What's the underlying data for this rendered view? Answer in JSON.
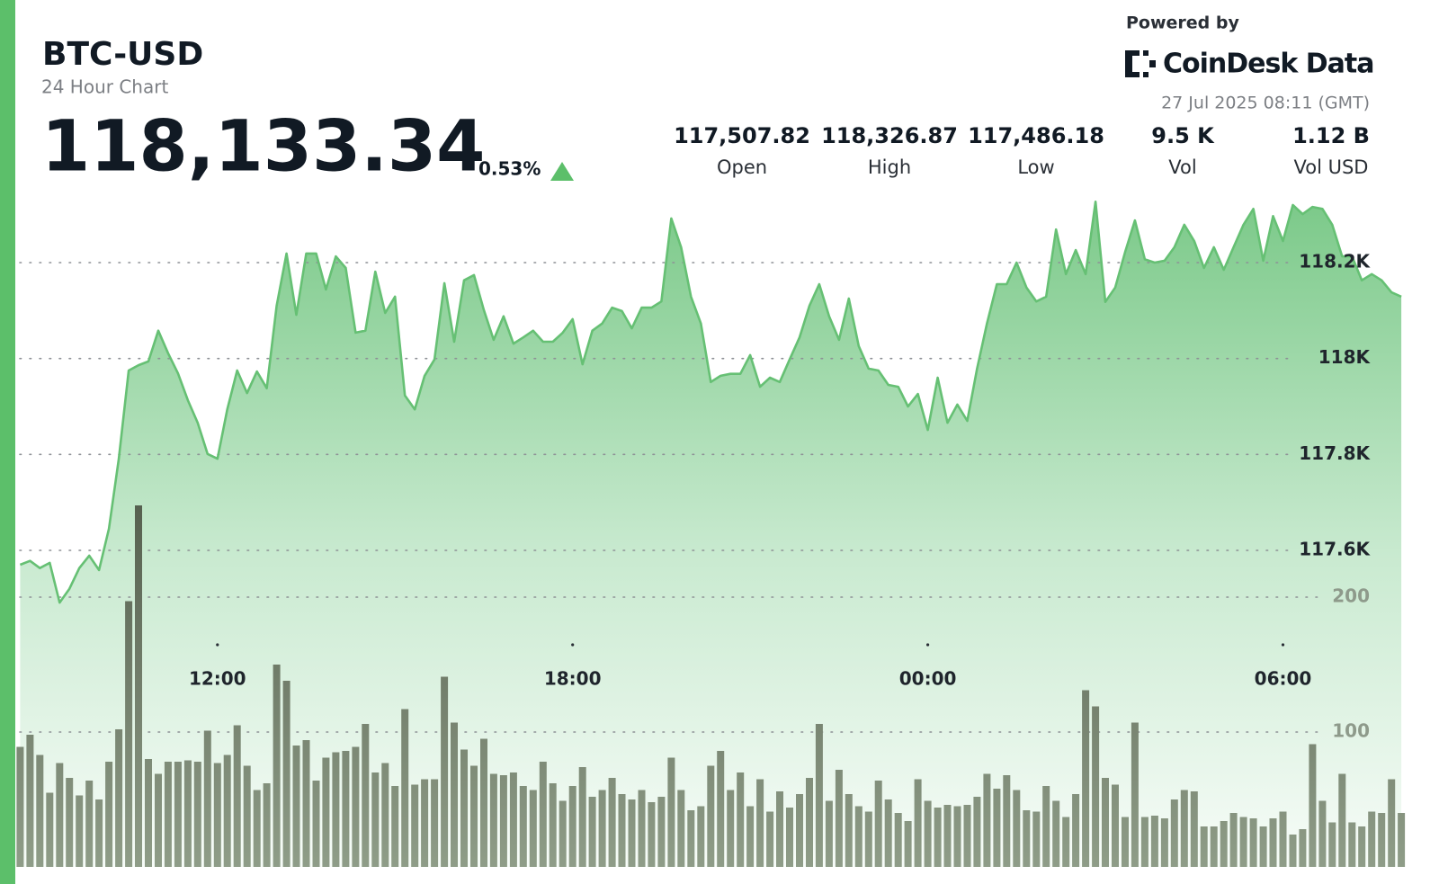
{
  "header": {
    "title": "BTC-USD",
    "subtitle": "24 Hour Chart",
    "price": "118,133.34",
    "change": "0.53%",
    "powered_by": "Powered by",
    "brand": "CoinDesk Data",
    "timestamp": "27 Jul 2025 08:11 (GMT)",
    "stats": [
      {
        "value": "117,507.82",
        "label": "Open"
      },
      {
        "value": "118,326.87",
        "label": "High"
      },
      {
        "value": "117,486.18",
        "label": "Low"
      },
      {
        "value": "9.5 K",
        "label": "Vol"
      },
      {
        "value": "1.12 B",
        "label": "Vol USD"
      }
    ]
  },
  "chart_data": {
    "type": "area",
    "x": [
      520,
      530,
      540,
      550,
      560,
      570,
      580,
      590,
      600,
      610,
      620,
      630,
      640,
      650,
      660,
      670,
      680,
      690,
      700,
      710,
      720,
      730,
      740,
      750,
      760,
      770,
      780,
      790,
      800,
      810,
      820,
      830,
      840,
      850,
      860,
      870,
      880,
      890,
      900,
      910,
      920,
      930,
      940,
      950,
      960,
      970,
      980,
      990,
      1000,
      1010,
      1020,
      1030,
      1040,
      1050,
      1060,
      1070,
      1080,
      1090,
      1100,
      1110,
      1120,
      1130,
      1140,
      1150,
      1160,
      1170,
      1180,
      1190,
      1200,
      1210,
      1220,
      1230,
      1240,
      1250,
      1260,
      1270,
      1280,
      1290,
      1300,
      1310,
      1320,
      1330,
      1340,
      1350,
      1360,
      1370,
      1380,
      1390,
      1400,
      1410,
      1420,
      1430,
      1440,
      1450,
      1460,
      1470,
      1480,
      1490,
      1500,
      1510,
      1520,
      1530,
      1540,
      1550,
      1560,
      1570,
      1580,
      1590,
      1600,
      1610,
      1620,
      1630,
      1640,
      1650,
      1660,
      1670,
      1680,
      1690,
      1700,
      1710,
      1720,
      1730,
      1740,
      1750,
      1760,
      1770,
      1780,
      1790,
      1800,
      1810,
      1820,
      1830,
      1840,
      1850,
      1860,
      1870,
      1880,
      1890,
      1900,
      1910,
      1920
    ],
    "xlim": [
      516,
      1929
    ],
    "xticks": [
      {
        "value": 720,
        "label": "12:00"
      },
      {
        "value": 1080,
        "label": "18:00"
      },
      {
        "value": 1440,
        "label": "00:00"
      },
      {
        "value": 1800,
        "label": "06:00"
      }
    ],
    "ylim": [
      116940,
      118380
    ],
    "yticks": [
      {
        "value": 117600,
        "label": "117.6K"
      },
      {
        "value": 117800,
        "label": "117.8K"
      },
      {
        "value": 118000,
        "label": "118K"
      },
      {
        "value": 118200,
        "label": "118.2K"
      }
    ],
    "y2lim": [
      0,
      512
    ],
    "y2ticks": [
      100,
      200
    ],
    "grid": true,
    "series": [
      {
        "color": "#66c074",
        "values": [
          117570,
          117578,
          117563,
          117574,
          117491,
          117520,
          117563,
          117589,
          117559,
          117645,
          117791,
          117975,
          117986,
          117994,
          118058,
          118011,
          117969,
          117913,
          117866,
          117801,
          117791,
          117894,
          117975,
          117928,
          117973,
          117938,
          118110,
          118219,
          118091,
          118219,
          118219,
          118144,
          118213,
          118189,
          118054,
          118058,
          118181,
          118095,
          118129,
          117923,
          117894,
          117964,
          117998,
          118157,
          118035,
          118163,
          118174,
          118101,
          118039,
          118088,
          118031,
          118044,
          118058,
          118035,
          118035,
          118054,
          118082,
          117988,
          118058,
          118073,
          118106,
          118099,
          118063,
          118106,
          118106,
          118119,
          118292,
          118232,
          118129,
          118073,
          117951,
          117964,
          117968,
          117968,
          118007,
          117941,
          117960,
          117951,
          117998,
          118044,
          118110,
          118155,
          118088,
          118039,
          118125,
          118026,
          117979,
          117975,
          117945,
          117941,
          117900,
          117926,
          117851,
          117960,
          117866,
          117904,
          117870,
          117979,
          118073,
          118155,
          118155,
          118200,
          118148,
          118119,
          118129,
          118269,
          118176,
          118226,
          118176,
          118327,
          118118,
          118148,
          118222,
          118288,
          118207,
          118200,
          118204,
          118232,
          118279,
          118245,
          118189,
          118232,
          118185,
          118232,
          118279,
          118312,
          118204,
          118297,
          118245,
          118320,
          118301,
          118316,
          118312,
          118279,
          118213,
          118213,
          118163,
          118176,
          118163,
          118138,
          118129
        ]
      },
      {
        "type": "bar",
        "axis": "y2",
        "color": "#67735f",
        "values": [
          89,
          98,
          83,
          55,
          77,
          66,
          53,
          64,
          50,
          78,
          102,
          197,
          268,
          80,
          69,
          78,
          78,
          79,
          78,
          101,
          77,
          83,
          105,
          75,
          57,
          62,
          150,
          138,
          90,
          94,
          64,
          81,
          85,
          86,
          89,
          106,
          70,
          77,
          60,
          117,
          61,
          65,
          65,
          141,
          107,
          87,
          75,
          95,
          69,
          68,
          70,
          60,
          57,
          78,
          62,
          49,
          60,
          74,
          52,
          57,
          66,
          54,
          50,
          57,
          48,
          52,
          81,
          57,
          42,
          45,
          75,
          86,
          57,
          70,
          45,
          65,
          41,
          56,
          44,
          54,
          66,
          106,
          49,
          72,
          54,
          45,
          41,
          64,
          50,
          40,
          34,
          65,
          49,
          44,
          46,
          45,
          46,
          52,
          69,
          58,
          68,
          57,
          42,
          41,
          60,
          49,
          37,
          54,
          131,
          119,
          66,
          61,
          37,
          107,
          37,
          38,
          36,
          50,
          57,
          56,
          30,
          30,
          34,
          40,
          37,
          36,
          30,
          36,
          41,
          24,
          28,
          91,
          49,
          33,
          69,
          33,
          30,
          41,
          40,
          65,
          40
        ]
      }
    ]
  }
}
